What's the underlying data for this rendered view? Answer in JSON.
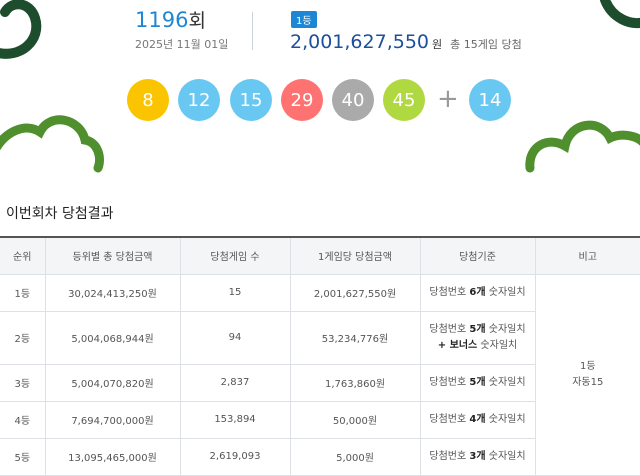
{
  "draw": {
    "round_number": "1196",
    "round_unit": "회",
    "date": "2025년 11월 01일",
    "badge": "1등",
    "amount": "2,001,627,550",
    "amount_unit": "원",
    "winners_note": "총 15게임 당첨",
    "numbers": [
      "8",
      "12",
      "15",
      "29",
      "40",
      "45"
    ],
    "bonus": "14"
  },
  "section_title": "이번회차 당첨결과",
  "table": {
    "headers": [
      "순위",
      "등위별 총 당첨금액",
      "당첨게임 수",
      "1게임당 당첨금액",
      "당첨기준",
      "비고"
    ],
    "rows": [
      [
        "1등",
        "30,024,413,250원",
        "15",
        "2,001,627,550원"
      ],
      [
        "2등",
        "5,004,068,944원",
        "94",
        "53,234,776원"
      ],
      [
        "3등",
        "5,004,070,820원",
        "2,837",
        "1,763,860원"
      ],
      [
        "4등",
        "7,694,700,000원",
        "153,894",
        "50,000원"
      ],
      [
        "5등",
        "13,095,465,000원",
        "2,619,093",
        "5,000원"
      ]
    ],
    "criteria": [
      [
        [
          "당첨번호",
          "6개",
          "숫자일치"
        ]
      ],
      [
        [
          "당첨번호",
          "5개",
          "숫자일치"
        ],
        [
          "+ 보너스",
          "숫자일치"
        ]
      ],
      [
        [
          "당첨번호",
          "5개",
          "숫자일치"
        ]
      ],
      [
        [
          "당첨번호",
          "4개",
          "숫자일치"
        ]
      ],
      [
        [
          "당첨번호",
          "3개",
          "숫자일치"
        ]
      ]
    ],
    "note": [
      "1등",
      "자동15"
    ]
  }
}
